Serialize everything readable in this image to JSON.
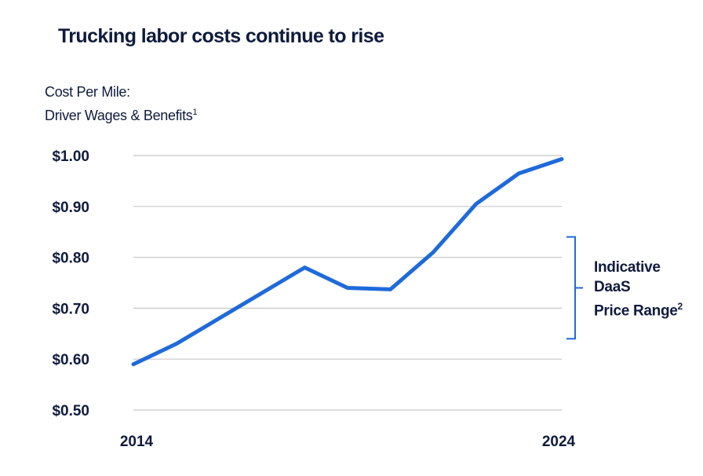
{
  "chart_data": {
    "type": "line",
    "title": "Trucking labor costs continue to rise",
    "ylabel": "Cost Per Mile:",
    "ylabel_line2": "Driver Wages & Benefits",
    "ylabel_footnote": "1",
    "xlabel": "",
    "x_tick_labels": [
      "2014",
      "2024"
    ],
    "y_tick_labels": [
      "$1.00",
      "$0.90",
      "$0.80",
      "$0.70",
      "$0.60",
      "$0.50"
    ],
    "y_ticks": [
      1.0,
      0.9,
      0.8,
      0.7,
      0.6,
      0.5
    ],
    "ylim": [
      0.5,
      1.0
    ],
    "xlim": [
      2014,
      2024
    ],
    "grid": true,
    "series": [
      {
        "name": "Driver Wages & Benefits",
        "color": "#1f6adb",
        "x": [
          2014,
          2015,
          2016,
          2017,
          2018,
          2019,
          2020,
          2021,
          2022,
          2023,
          2024
        ],
        "values": [
          0.59,
          0.63,
          0.68,
          0.73,
          0.78,
          0.74,
          0.737,
          0.81,
          0.905,
          0.965,
          0.993
        ]
      }
    ],
    "annotation": {
      "line1": "Indicative",
      "line2": "DaaS",
      "line3": "Price Range",
      "footnote": "2",
      "range": [
        0.64,
        0.84
      ],
      "color": "#1f6adb"
    }
  }
}
